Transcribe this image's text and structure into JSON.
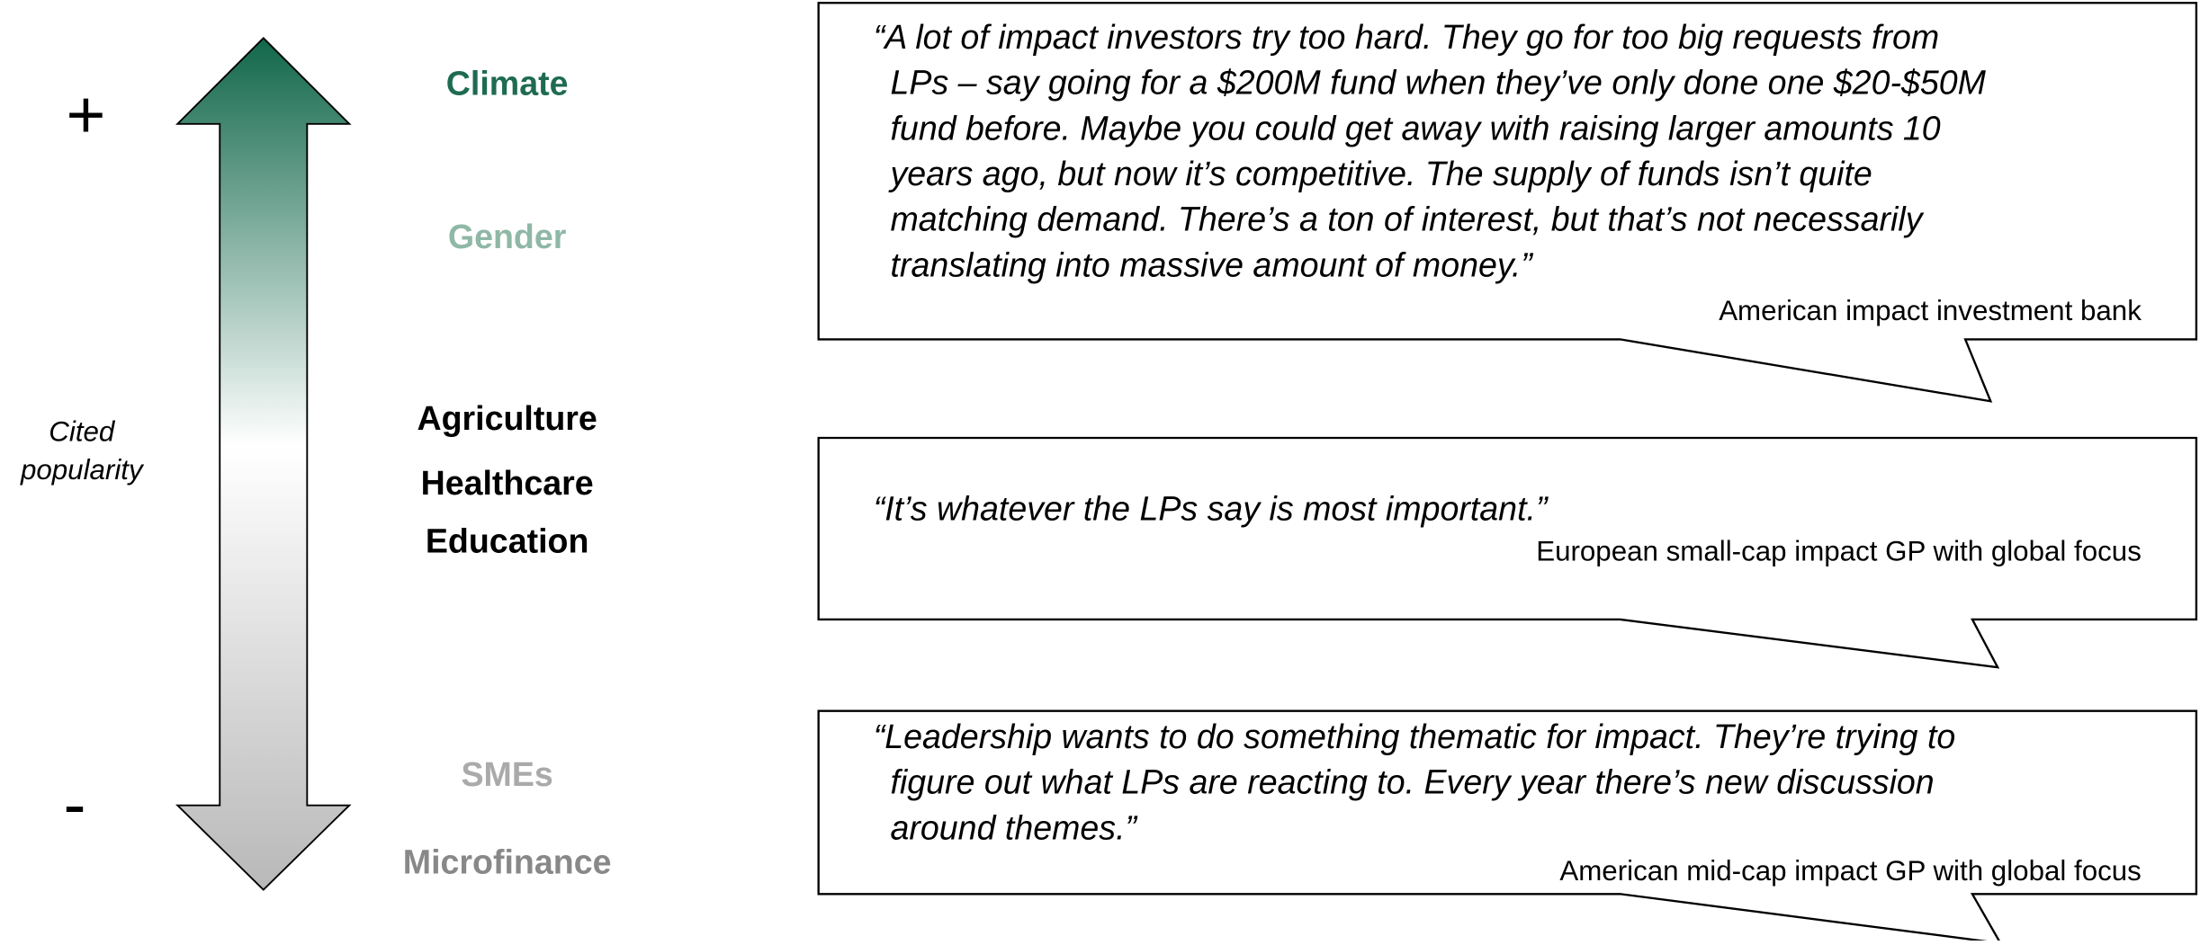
{
  "scale": {
    "top": "+",
    "bottom": "-",
    "label": [
      "Cited",
      "popularity"
    ]
  },
  "themes": [
    {
      "label": "Climate",
      "color": "#1e6b50"
    },
    {
      "label": "Gender",
      "color": "#8fb8a6"
    },
    {
      "label": "Agriculture",
      "color": "#000000"
    },
    {
      "label": "Healthcare",
      "color": "#000000"
    },
    {
      "label": "Education",
      "color": "#000000"
    },
    {
      "label": "SMEs",
      "color": "#aaaaaa"
    },
    {
      "label": "Microfinance",
      "color": "#888888"
    }
  ],
  "quotes": [
    {
      "lines": [
        "“A lot of impact investors try too hard. They go for too big requests from",
        "LPs – say going for a $200M fund when they’ve only done one $20-$50M",
        "fund before. Maybe you could get away with raising larger amounts 10",
        "years ago, but now it’s competitive. The supply of funds isn’t quite",
        "matching demand. There’s a ton of interest, but that’s not necessarily",
        "translating into massive amount of money.”"
      ],
      "source": "American impact investment bank"
    },
    {
      "lines": [
        "“It’s whatever the LPs say is most important.”"
      ],
      "source": "European small-cap impact GP with global focus"
    },
    {
      "lines": [
        "“Leadership wants to do something thematic for impact. They’re trying to",
        "figure out what LPs are reacting to. Every year there’s new discussion",
        "around themes.”"
      ],
      "source": "American mid-cap impact GP with global focus"
    }
  ]
}
